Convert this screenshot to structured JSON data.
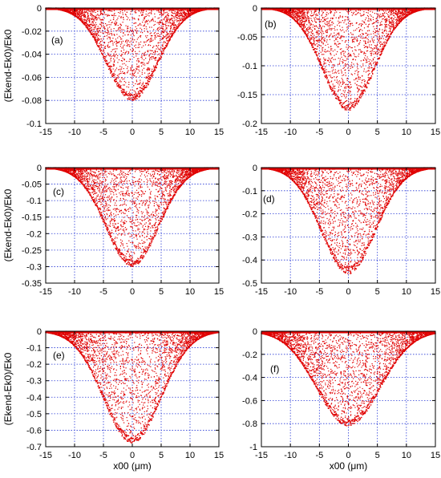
{
  "chart_data": [
    {
      "panel": "(a)",
      "type": "scatter",
      "ylabel": "(Ekend-Ek0)/Ek0",
      "xlabel": "",
      "xlim": [
        -15,
        15
      ],
      "ylim": [
        -0.1,
        0
      ],
      "xticks": [
        "-15",
        "-10",
        "-5",
        "0",
        "5",
        "10",
        "15"
      ],
      "yticks": [
        "-0.1",
        "-0.08",
        "-0.06",
        "-0.04",
        "-0.02",
        "0"
      ],
      "grid": true,
      "color": "#e00000",
      "envelope": {
        "min_at_x0": -0.08,
        "width_sigma": 4.5
      }
    },
    {
      "panel": "(b)",
      "type": "scatter",
      "ylabel": "",
      "xlabel": "",
      "xlim": [
        -15,
        15
      ],
      "ylim": [
        -0.2,
        0
      ],
      "xticks": [
        "-15",
        "-10",
        "-5",
        "0",
        "5",
        "10",
        "15"
      ],
      "yticks": [
        "-0.2",
        "-0.15",
        "-0.1",
        "-0.05",
        "0"
      ],
      "grid": true,
      "color": "#e00000",
      "envelope": {
        "min_at_x0": -0.178,
        "width_sigma": 4.5
      }
    },
    {
      "panel": "(c)",
      "type": "scatter",
      "ylabel": "(Ekend-Ek0)/Ek0",
      "xlabel": "",
      "xlim": [
        -15,
        15
      ],
      "ylim": [
        -0.35,
        0
      ],
      "xticks": [
        "-15",
        "-10",
        "-5",
        "0",
        "5",
        "10",
        "15"
      ],
      "yticks": [
        "-0.35",
        "-0.3",
        "-0.25",
        "-0.2",
        "-0.15",
        "-0.1",
        "-0.05",
        "0"
      ],
      "grid": true,
      "color": "#e00000",
      "envelope": {
        "min_at_x0": -0.3,
        "width_sigma": 4.6
      }
    },
    {
      "panel": "(d)",
      "type": "scatter",
      "ylabel": "",
      "xlabel": "",
      "xlim": [
        -15,
        15
      ],
      "ylim": [
        -0.5,
        0
      ],
      "xticks": [
        "-15",
        "-10",
        "-5",
        "0",
        "5",
        "10",
        "15"
      ],
      "yticks": [
        "-0.5",
        "-0.4",
        "-0.3",
        "-0.2",
        "-0.1",
        "0"
      ],
      "grid": true,
      "color": "#e00000",
      "envelope": {
        "min_at_x0": -0.46,
        "width_sigma": 4.7
      }
    },
    {
      "panel": "(e)",
      "type": "scatter",
      "ylabel": "(Ekend-Ek0)/Ek0",
      "xlabel": "x00 (μm)",
      "xlim": [
        -15,
        15
      ],
      "ylim": [
        -0.7,
        0
      ],
      "xticks": [
        "-15",
        "-10",
        "-5",
        "0",
        "5",
        "10",
        "15"
      ],
      "yticks": [
        "-0.7",
        "-0.6",
        "-0.5",
        "-0.4",
        "-0.3",
        "-0.2",
        "-0.1",
        "0"
      ],
      "grid": true,
      "color": "#e00000",
      "envelope": {
        "min_at_x0": -0.68,
        "width_sigma": 5.0
      }
    },
    {
      "panel": "(f)",
      "type": "scatter",
      "ylabel": "",
      "xlabel": "x00 (μm)",
      "xlim": [
        -15,
        15
      ],
      "ylim": [
        -1,
        0
      ],
      "xticks": [
        "-15",
        "-10",
        "-5",
        "0",
        "5",
        "10",
        "15"
      ],
      "yticks": [
        "-1",
        "-0.8",
        "-0.6",
        "-0.4",
        "-0.2",
        "0"
      ],
      "grid": true,
      "color": "#e00000",
      "envelope": {
        "min_at_x0": -0.82,
        "width_sigma": 5.5
      }
    }
  ]
}
